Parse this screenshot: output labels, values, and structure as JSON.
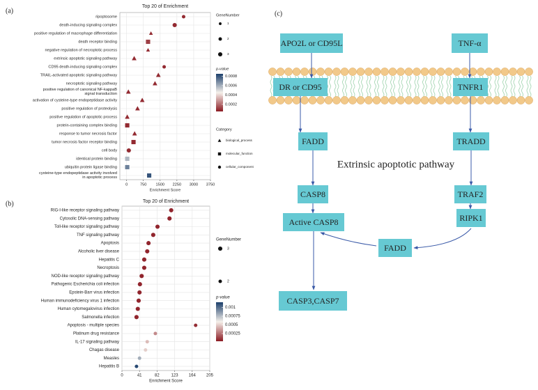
{
  "chart_data": [
    {
      "type": "scatter",
      "panel_label": "(a)",
      "title": "Top 20 of  Enrichment",
      "x_label": "Enrichment Score",
      "categories": [
        "ripoptosome",
        "death-inducing signaling complex",
        "positive regulation of macrophage differentiation",
        "death receptor binding",
        "negative regulation of necroptotic process",
        "extrinsic apoptotic signaling pathway",
        "CD95 death-inducing signaling complex",
        "TRAIL-activated apoptotic signaling pathway",
        "necroptotic signaling pathway",
        "positive regulation of canonical NF-kappaB\nsignal transduction",
        "activation of cysteine-type endopeptidase activity",
        "positive regulation of proteolysis",
        "positive regulation of apoptotic process",
        "protein-containing complex binding",
        "response to tumor necrosis factor",
        "tumor necrosis factor receptor binding",
        "cell body",
        "identical protein binding",
        "ubiquitin protein ligase binding",
        "cysteine-type endopeptidase activity involved\nin apoptotic process"
      ],
      "values": [
        2550,
        2150,
        1090,
        960,
        960,
        340,
        1680,
        1420,
        1270,
        80,
        700,
        490,
        30,
        30,
        360,
        310,
        100,
        30,
        30,
        1010
      ],
      "sizes": [
        2,
        3,
        2,
        3,
        2,
        3,
        2,
        3,
        3,
        3,
        3,
        3,
        3,
        3,
        3,
        3,
        3,
        3,
        3,
        3
      ],
      "pvalues": [
        8e-05,
        8e-05,
        8e-05,
        0.00012,
        8e-05,
        8e-05,
        8e-05,
        8e-05,
        8e-05,
        8e-05,
        8e-05,
        8e-05,
        8e-05,
        8e-05,
        8e-05,
        8e-05,
        8e-05,
        0.00058,
        0.0007,
        0.0008
      ],
      "groups": [
        "cellular_component",
        "cellular_component",
        "biological_process",
        "molecular_function",
        "biological_process",
        "biological_process",
        "cellular_component",
        "biological_process",
        "biological_process",
        "biological_process",
        "biological_process",
        "biological_process",
        "biological_process",
        "molecular_function",
        "biological_process",
        "molecular_function",
        "cellular_component",
        "molecular_function",
        "molecular_function",
        "molecular_function"
      ],
      "xlim": [
        -300,
        3750
      ],
      "xticks": [
        0,
        750,
        1500,
        2250,
        3000,
        3750
      ],
      "grid": true,
      "size_legend": {
        "title": "GeneNumber",
        "entries": [
          1,
          2,
          3
        ]
      },
      "color_scale": {
        "title": "p-value",
        "lim": [
          5e-05,
          0.00085
        ],
        "ticks": [
          0.0002,
          0.0004,
          0.0006,
          0.0008
        ],
        "colors": [
          "#8b1a22",
          "#f5f0ea",
          "#1b3f6b"
        ]
      },
      "group_legend": {
        "title": "Category",
        "entries": [
          "biological_process",
          "molecular_function",
          "cellular_component"
        ]
      }
    },
    {
      "type": "scatter",
      "panel_label": "(b)",
      "title": "Top 20 of Enrichment",
      "x_label": "Enrichment Score",
      "categories": [
        "RIG-I-like receptor signaling pathway",
        "Cytosolic DNA-sensing pathway",
        "Toll-like receptor signaling pathway",
        "TNF signaling pathway",
        "Apoptosis",
        "Alcoholic liver disease",
        "Hepatitis C",
        "Necroptosis",
        "NOD-like receptor signaling pathway",
        "Pathogenic Escherichia coli infection",
        "Epstein-Barr virus infection",
        "Human immunodeficiency virus 1 infection",
        "Human cytomegalovirus infection",
        "Salmonella infection",
        "Apoptosis - multiple species",
        "Platinum drug resistance",
        "IL-17 signaling pathway",
        "Chagas disease",
        "Measles",
        "Hepatitis B"
      ],
      "values": [
        115,
        111,
        83,
        73,
        62,
        59,
        52,
        52,
        46,
        42,
        41,
        39,
        37,
        34,
        172,
        78,
        59,
        55,
        41,
        34
      ],
      "sizes": [
        3,
        3,
        3,
        3,
        3,
        3,
        3,
        3,
        3,
        3,
        3,
        3,
        3,
        3,
        2,
        2,
        2,
        2,
        2,
        2
      ],
      "pvalues": [
        6e-05,
        6e-05,
        6e-05,
        6e-05,
        6e-05,
        6e-05,
        6e-05,
        6e-05,
        6e-05,
        6e-05,
        6e-05,
        6e-05,
        6e-05,
        6e-05,
        8e-05,
        0.00032,
        0.00045,
        0.0005,
        0.0008,
        0.00112
      ],
      "xlim": [
        0,
        205
      ],
      "xticks": [
        0,
        41,
        82,
        123,
        164,
        205
      ],
      "grid": true,
      "size_legend": {
        "title": "GeneNumber",
        "entries": [
          3,
          2
        ]
      },
      "color_scale": {
        "title": "p-value",
        "lim": [
          3e-05,
          0.00115
        ],
        "ticks": [
          0.00025,
          0.0005,
          0.00075,
          0.001
        ],
        "colors": [
          "#8b1a22",
          "#f5f0ea",
          "#1b3f6b"
        ]
      }
    }
  ],
  "diagram": {
    "panel_label": "(c)",
    "title": "Extrinsic apoptotic pathway",
    "nodes": [
      {
        "label": "APO2L or CD95L"
      },
      {
        "label": "TNF-α"
      },
      {
        "label": "DR or CD95"
      },
      {
        "label": "TNFR1"
      },
      {
        "label": "FADD"
      },
      {
        "label": "TRADD"
      },
      {
        "label": "CASP8"
      },
      {
        "label": "TRAF2"
      },
      {
        "label": "Active CASP8"
      },
      {
        "label": "RIPK1"
      },
      {
        "label": "FADD"
      },
      {
        "label": "CASP3,CASP7"
      }
    ]
  }
}
